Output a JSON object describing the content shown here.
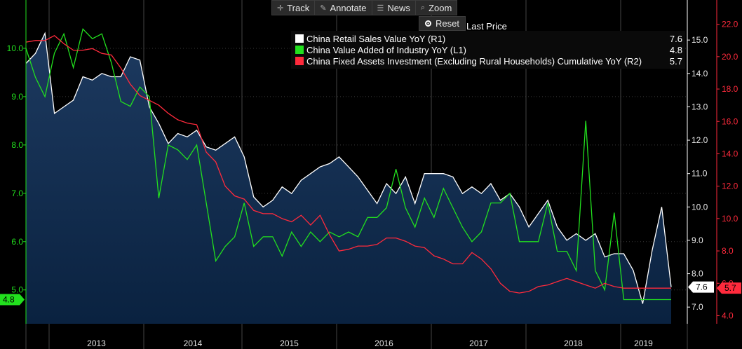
{
  "toolbar": {
    "track": "Track",
    "annotate": "Annotate",
    "news": "News",
    "zoom": "Zoom",
    "reset": "Reset"
  },
  "legend": {
    "header": "Last Price",
    "items": [
      {
        "name": "China Retail Sales Value YoY  (R1)",
        "value": "7.6",
        "color": "#ffffff"
      },
      {
        "name": "China Value Added of Industry YoY  (L1)",
        "value": "4.8",
        "color": "#22e01e"
      },
      {
        "name": "China Fixed Assets Investment (Excluding Rural Households) Cumulative YoY  (R2)",
        "value": "5.7",
        "color": "#ff2a3c"
      }
    ]
  },
  "chart_data": {
    "type": "line",
    "x_labels": [
      "2013",
      "2014",
      "2015",
      "2016",
      "2017",
      "2018",
      "2019"
    ],
    "axes": {
      "left": {
        "ticks": [
          "5.0",
          "6.0",
          "7.0",
          "8.0",
          "9.0",
          "10.0"
        ],
        "range": [
          4.3,
          11.0
        ],
        "color": "#22e01e"
      },
      "right1": {
        "ticks": [
          "7.0",
          "8.0",
          "9.0",
          "10.0",
          "11.0",
          "12.0",
          "13.0",
          "14.0",
          "15.0"
        ],
        "range": [
          6.5,
          16.2
        ],
        "color": "#ffffff"
      },
      "right2": {
        "ticks": [
          "4.0",
          "6.0",
          "8.0",
          "10.0",
          "12.0",
          "14.0",
          "16.0",
          "18.0",
          "20.0",
          "22.0"
        ],
        "range": [
          3.5,
          23.5
        ],
        "color": "#ff2a3c"
      }
    },
    "last_labels": {
      "left": "4.8",
      "right1": "7.6",
      "right2": "5.7"
    },
    "series": [
      {
        "name": "China Retail Sales Value YoY  (R1)",
        "axis": "right1",
        "color": "#ffffff",
        "fill": true,
        "values": [
          14.3,
          14.6,
          15.2,
          12.8,
          13.0,
          13.2,
          13.9,
          13.8,
          14.0,
          13.9,
          13.9,
          14.5,
          14.4,
          13.0,
          12.5,
          11.9,
          12.2,
          12.1,
          12.3,
          11.8,
          11.7,
          11.9,
          12.1,
          11.5,
          10.3,
          10.0,
          10.2,
          10.6,
          10.4,
          10.8,
          11.0,
          11.2,
          11.3,
          11.5,
          11.2,
          10.9,
          10.5,
          10.1,
          10.7,
          10.4,
          10.9,
          10.1,
          11.0,
          11.0,
          11.0,
          10.9,
          10.4,
          10.6,
          10.4,
          10.7,
          10.2,
          10.4,
          10.0,
          9.4,
          9.8,
          10.2,
          9.4,
          9.0,
          9.2,
          9.0,
          9.2,
          8.5,
          8.6,
          8.6,
          8.1,
          7.1,
          8.7,
          10.0,
          7.6
        ]
      },
      {
        "name": "China Value Added of Industry YoY  (L1)",
        "axis": "left",
        "color": "#22e01e",
        "fill": false,
        "values": [
          10.0,
          9.4,
          9.0,
          9.9,
          10.3,
          9.6,
          10.4,
          10.2,
          10.3,
          9.7,
          8.9,
          8.8,
          9.2,
          9.0,
          6.9,
          8.0,
          7.9,
          7.7,
          8.0,
          6.8,
          5.6,
          5.9,
          6.1,
          6.8,
          5.9,
          6.1,
          6.1,
          5.7,
          6.2,
          5.9,
          6.2,
          6.0,
          6.2,
          6.1,
          6.2,
          6.1,
          6.5,
          6.5,
          6.7,
          7.5,
          6.7,
          6.3,
          6.9,
          6.5,
          7.1,
          6.7,
          6.3,
          6.0,
          6.2,
          6.8,
          6.8,
          7.0,
          6.0,
          6.0,
          6.0,
          6.8,
          5.8,
          5.8,
          5.4,
          8.5,
          5.4,
          5.0,
          6.6,
          4.8,
          4.8,
          4.8,
          4.8,
          4.8,
          4.8
        ]
      },
      {
        "name": "China Fixed Assets Investment (Excluding Rural Households) Cumulative YoY  (R2)",
        "axis": "right2",
        "color": "#ff2a3c",
        "fill": false,
        "values": [
          20.9,
          21.0,
          21.0,
          21.3,
          20.8,
          20.4,
          20.4,
          20.5,
          20.2,
          20.1,
          19.3,
          18.3,
          17.6,
          17.3,
          17.0,
          16.5,
          16.1,
          15.9,
          15.8,
          14.1,
          13.5,
          12.0,
          11.4,
          11.2,
          10.5,
          10.3,
          10.3,
          10.0,
          9.8,
          10.2,
          9.6,
          10.2,
          9.0,
          8.0,
          8.1,
          8.3,
          8.3,
          8.4,
          8.8,
          8.8,
          8.6,
          8.3,
          8.2,
          7.7,
          7.5,
          7.2,
          7.2,
          7.9,
          7.5,
          6.9,
          6.0,
          5.5,
          5.4,
          5.5,
          5.8,
          5.9,
          6.1,
          6.3,
          6.1,
          5.9,
          5.7,
          6.0,
          5.8,
          5.7,
          5.7,
          5.7,
          5.7,
          5.7,
          5.7
        ]
      }
    ]
  }
}
